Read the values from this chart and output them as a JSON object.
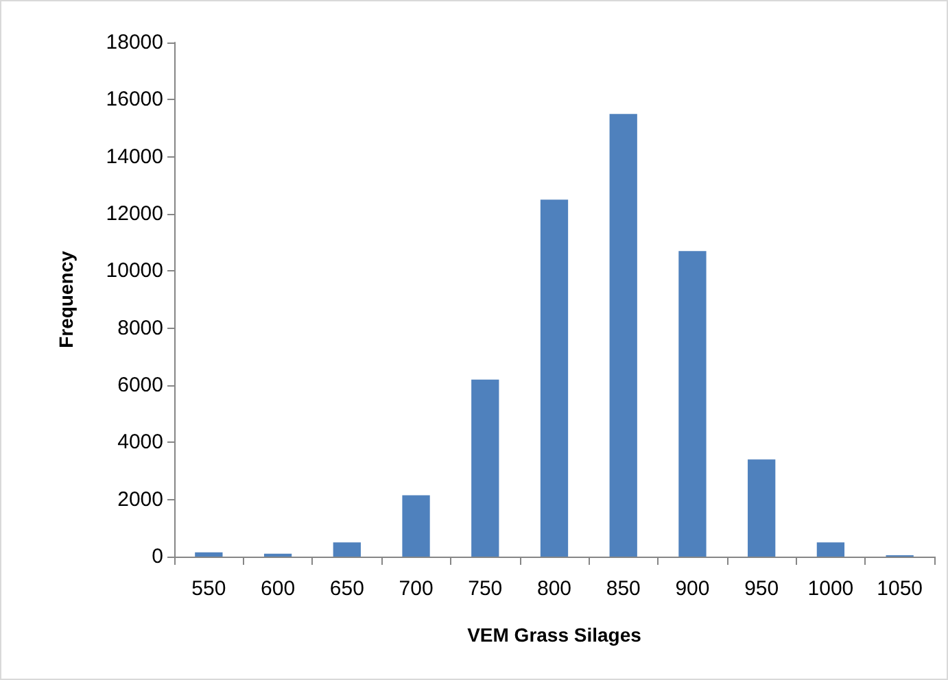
{
  "chart_data": {
    "type": "bar",
    "xlabel": "VEM Grass Silages",
    "ylabel": "Frequency",
    "categories": [
      "550",
      "600",
      "650",
      "700",
      "750",
      "800",
      "850",
      "900",
      "950",
      "1000",
      "1050"
    ],
    "values": [
      150,
      100,
      500,
      2150,
      6200,
      12500,
      15500,
      10700,
      3400,
      500,
      50
    ],
    "color": "#4f81bd",
    "ylim": [
      0,
      18000
    ],
    "yticks": [
      0,
      2000,
      4000,
      6000,
      8000,
      10000,
      12000,
      14000,
      16000,
      18000
    ],
    "grid": false
  }
}
